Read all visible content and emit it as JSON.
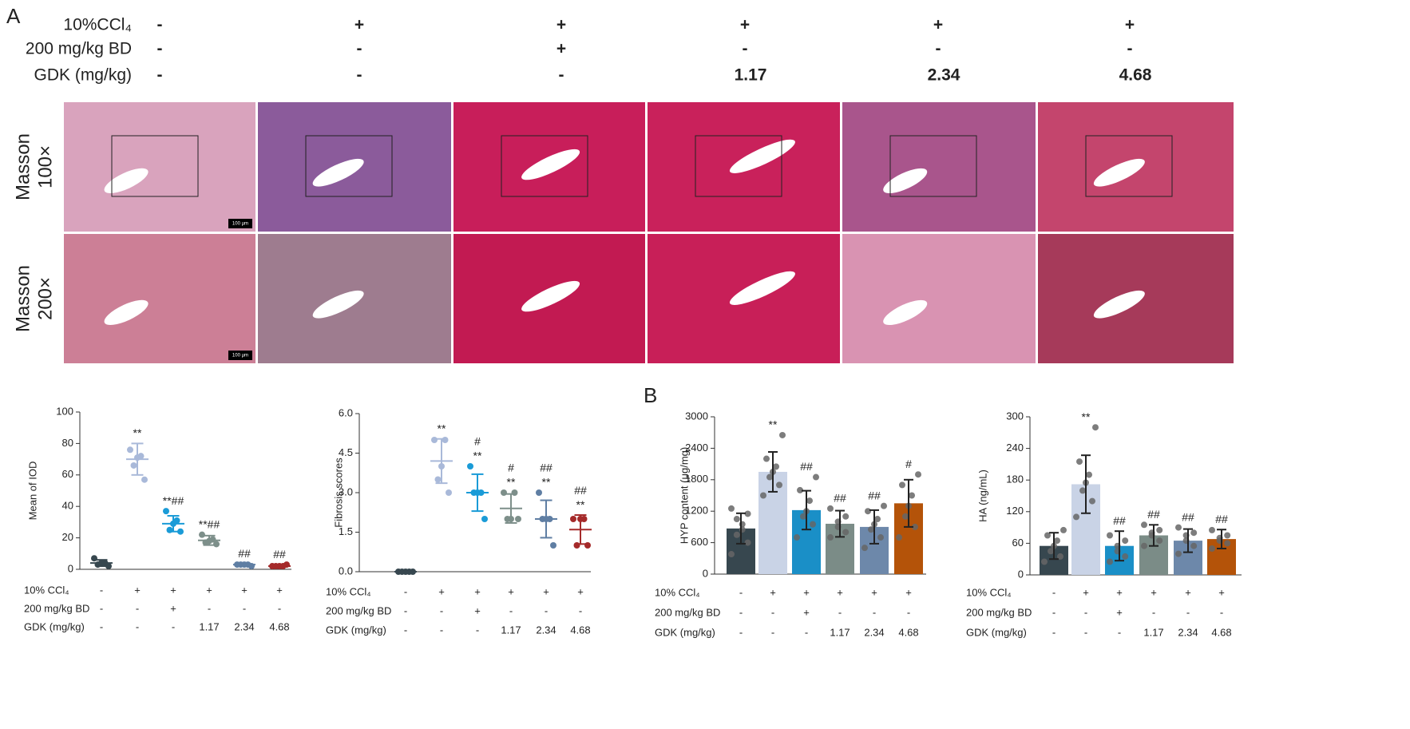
{
  "panel_a": "A",
  "panel_b": "B",
  "header": {
    "rows": [
      {
        "label": "10%CCl₄",
        "cells": [
          "-",
          "+",
          "+",
          "+",
          "+",
          "+"
        ]
      },
      {
        "label": "200 mg/kg BD",
        "cells": [
          "-",
          "-",
          "+",
          "-",
          "-",
          "-"
        ]
      },
      {
        "label": "GDK (mg/kg)",
        "cells": [
          "-",
          "-",
          "-",
          "1.17",
          "2.34",
          "4.68"
        ]
      }
    ]
  },
  "micrographs": {
    "row_labels": [
      [
        "Masson",
        "100×"
      ],
      [
        "Masson",
        "200×"
      ]
    ],
    "scale_bar": "100 μm"
  },
  "chart_data": [
    {
      "type": "dot",
      "ylabel": "Mean of IOD",
      "ylim": [
        0,
        100
      ],
      "yticks": [
        0,
        20,
        40,
        60,
        80,
        100
      ],
      "conditions": {
        "labels": [
          "10% CCl₄",
          "200 mg/kg BD",
          "GDK (mg/kg)"
        ],
        "rows": [
          [
            "-",
            "+",
            "+",
            "+",
            "+",
            "+"
          ],
          [
            "-",
            "-",
            "+",
            "-",
            "-",
            "-"
          ],
          [
            "-",
            "-",
            "-",
            "1.17",
            "2.34",
            "4.68"
          ]
        ]
      },
      "groups": [
        {
          "color": "#37474f",
          "points": [
            7,
            4,
            4,
            3,
            2
          ],
          "mean": 4,
          "sd": 2,
          "annotation": []
        },
        {
          "color": "#a9b9d9",
          "points": [
            76,
            72,
            71,
            66,
            57
          ],
          "mean": 70,
          "sd": 10,
          "annotation": [
            "**"
          ]
        },
        {
          "color": "#1a9bd7",
          "points": [
            37,
            31,
            29,
            25,
            24
          ],
          "mean": 29,
          "sd": 5,
          "annotation": [
            "**##"
          ]
        },
        {
          "color": "#7d8f8a",
          "points": [
            22,
            19,
            18,
            17,
            16
          ],
          "mean": 18.4,
          "sd": 3,
          "annotation": [
            "**##"
          ]
        },
        {
          "color": "#5f7ea3",
          "points": [
            3,
            3,
            3,
            3,
            2
          ],
          "mean": 3,
          "sd": 0.5,
          "annotation": [
            "##"
          ]
        },
        {
          "color": "#a52a2a",
          "points": [
            2,
            2,
            2,
            2,
            3
          ],
          "mean": 2,
          "sd": 0.5,
          "annotation": [
            "##"
          ]
        }
      ]
    },
    {
      "type": "dot",
      "ylabel": "Fibrosis scores",
      "ylim": [
        0,
        6
      ],
      "yticks": [
        {
          "value": 0,
          "label": "0.0"
        },
        {
          "value": 1.5,
          "label": "1.5"
        },
        {
          "value": 3,
          "label": "3.0"
        },
        {
          "value": 4.5,
          "label": "4.5"
        },
        {
          "value": 6,
          "label": "6.0"
        }
      ],
      "conditions": {
        "labels": [
          "10% CCl₄",
          "200 mg/kg BD",
          "GDK (mg/kg)"
        ],
        "rows": [
          [
            "-",
            "+",
            "+",
            "+",
            "+",
            "+"
          ],
          [
            "-",
            "-",
            "+",
            "-",
            "-",
            "-"
          ],
          [
            "-",
            "-",
            "-",
            "1.17",
            "2.34",
            "4.68"
          ]
        ]
      },
      "groups": [
        {
          "color": "#37474f",
          "points": [
            0,
            0,
            0,
            0,
            0
          ],
          "mean": 0,
          "sd": 0,
          "annotation": []
        },
        {
          "color": "#a9b9d9",
          "points": [
            5,
            5,
            4,
            3.5,
            3
          ],
          "mean": 4.2,
          "sd": 0.84,
          "annotation": [
            "**"
          ]
        },
        {
          "color": "#1a9bd7",
          "points": [
            4,
            3,
            3,
            3,
            2
          ],
          "mean": 3,
          "sd": 0.7,
          "annotation": [
            "#",
            "**"
          ]
        },
        {
          "color": "#7d8f8a",
          "points": [
            3,
            3,
            2,
            2,
            2
          ],
          "mean": 2.4,
          "sd": 0.55,
          "annotation": [
            "#",
            "**"
          ]
        },
        {
          "color": "#5f7ea3",
          "points": [
            3,
            2,
            2,
            2,
            1
          ],
          "mean": 2,
          "sd": 0.71,
          "annotation": [
            "##",
            "**"
          ]
        },
        {
          "color": "#a52a2a",
          "points": [
            2,
            2,
            2,
            1,
            1
          ],
          "mean": 1.6,
          "sd": 0.55,
          "annotation": [
            "##",
            "**"
          ]
        }
      ]
    },
    {
      "type": "bar",
      "ylabel": "HYP  content (μg/mg)",
      "ylim": [
        0,
        3000
      ],
      "yticks": [
        0,
        600,
        1200,
        1800,
        2400,
        3000
      ],
      "conditions": {
        "labels": [
          "10% CCl₄",
          "200 mg/kg BD",
          "GDK (mg/kg)"
        ],
        "rows": [
          [
            "-",
            "+",
            "+",
            "+",
            "+",
            "+"
          ],
          [
            "-",
            "-",
            "+",
            "-",
            "-",
            "-"
          ],
          [
            "-",
            "-",
            "-",
            "1.17",
            "2.34",
            "4.68"
          ]
        ]
      },
      "groups": [
        {
          "color": "#37474f",
          "points": [
            380,
            600,
            750,
            850,
            950,
            1050,
            1150,
            1250
          ],
          "mean": 870,
          "sd": 290,
          "annotation": []
        },
        {
          "color": "#c9d3e6",
          "points": [
            1500,
            1700,
            1850,
            1950,
            2050,
            2200,
            2650
          ],
          "mean": 1950,
          "sd": 380,
          "annotation": [
            "**"
          ]
        },
        {
          "color": "#1a8fc7",
          "points": [
            700,
            950,
            1100,
            1200,
            1400,
            1600,
            1850
          ],
          "mean": 1220,
          "sd": 370,
          "annotation": [
            "##"
          ]
        },
        {
          "color": "#7b8c87",
          "points": [
            700,
            800,
            900,
            1000,
            1100,
            1250
          ],
          "mean": 960,
          "sd": 250,
          "annotation": [
            "##"
          ]
        },
        {
          "color": "#6d88aa",
          "points": [
            500,
            700,
            850,
            950,
            1050,
            1200,
            1300
          ],
          "mean": 900,
          "sd": 320,
          "annotation": [
            "##"
          ]
        },
        {
          "color": "#b45309",
          "points": [
            700,
            900,
            1100,
            1300,
            1500,
            1700,
            1900
          ],
          "mean": 1350,
          "sd": 450,
          "annotation": [
            "#"
          ]
        }
      ]
    },
    {
      "type": "bar",
      "ylabel": "HA  (ng/mL)",
      "ylim": [
        0,
        300
      ],
      "yticks": [
        0,
        60,
        120,
        180,
        240,
        300
      ],
      "conditions": {
        "labels": [
          "10% CCl₄",
          "200 mg/kg BD",
          "GDK (mg/kg)"
        ],
        "rows": [
          [
            "-",
            "+",
            "+",
            "+",
            "+",
            "+"
          ],
          [
            "-",
            "-",
            "+",
            "-",
            "-",
            "-"
          ],
          [
            "-",
            "-",
            "-",
            "1.17",
            "2.34",
            "4.68"
          ]
        ]
      },
      "groups": [
        {
          "color": "#37474f",
          "points": [
            25,
            35,
            45,
            55,
            65,
            75,
            85
          ],
          "mean": 55,
          "sd": 25,
          "annotation": []
        },
        {
          "color": "#c9d3e6",
          "points": [
            110,
            140,
            160,
            175,
            190,
            215,
            280
          ],
          "mean": 172,
          "sd": 55,
          "annotation": [
            "**"
          ]
        },
        {
          "color": "#1a8fc7",
          "points": [
            25,
            35,
            45,
            55,
            65,
            75
          ],
          "mean": 55,
          "sd": 28,
          "annotation": [
            "##"
          ]
        },
        {
          "color": "#7b8c87",
          "points": [
            55,
            65,
            75,
            80,
            85,
            95
          ],
          "mean": 75,
          "sd": 20,
          "annotation": [
            "##"
          ]
        },
        {
          "color": "#6d88aa",
          "points": [
            40,
            55,
            65,
            75,
            80,
            90
          ],
          "mean": 65,
          "sd": 22,
          "annotation": [
            "##"
          ]
        },
        {
          "color": "#b45309",
          "points": [
            50,
            60,
            65,
            70,
            75,
            85
          ],
          "mean": 68,
          "sd": 18,
          "annotation": [
            "##"
          ]
        }
      ]
    }
  ]
}
